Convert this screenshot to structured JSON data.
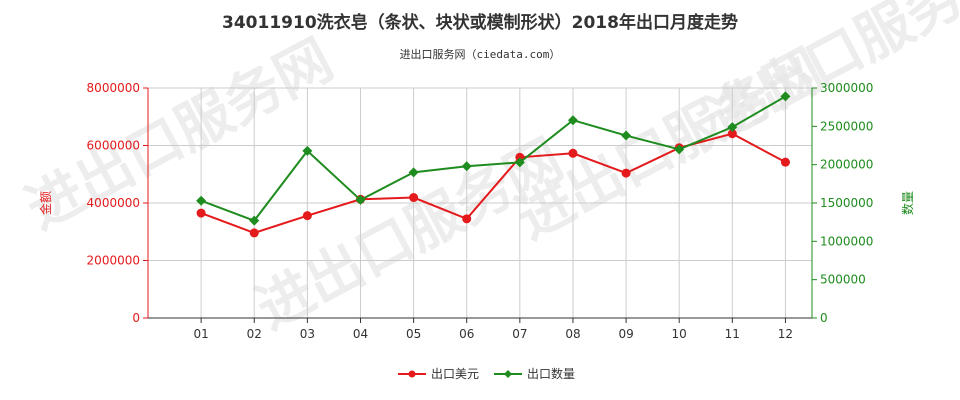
{
  "title": "34011910洗衣皂（条状、块状或模制形状）2018年出口月度走势",
  "subtitle": "进出口服务网（ciedata.com）",
  "watermark": "进出口服务网",
  "colors": {
    "value": "#e41a1c",
    "quantity": "#1e8c1e",
    "grid": "#cccccc",
    "axis": "#333333"
  },
  "chart_data": {
    "type": "line",
    "categories": [
      "01",
      "02",
      "03",
      "04",
      "05",
      "06",
      "07",
      "08",
      "09",
      "10",
      "11",
      "12"
    ],
    "y_left": {
      "label": "金额",
      "ylim": [
        0,
        8000000
      ],
      "ticks": [
        "0",
        "2000000",
        "4000000",
        "6000000",
        "8000000"
      ]
    },
    "y_right": {
      "label": "数量",
      "ylim": [
        0,
        3000000
      ],
      "ticks": [
        "0",
        "500000",
        "1000000",
        "1500000",
        "2000000",
        "2500000",
        "3000000"
      ]
    },
    "series": [
      {
        "name": "出口美元",
        "axis": "left",
        "color": "#e41a1c",
        "marker": "circle",
        "values": [
          3650000,
          2960000,
          3560000,
          4130000,
          4190000,
          3450000,
          5590000,
          5730000,
          5040000,
          5920000,
          6410000,
          5420000
        ]
      },
      {
        "name": "出口数量",
        "axis": "right",
        "color": "#1e8c1e",
        "marker": "diamond",
        "values": [
          1530000,
          1270000,
          2180000,
          1540000,
          1900000,
          1980000,
          2030000,
          2580000,
          2380000,
          2200000,
          2490000,
          2890000
        ]
      }
    ],
    "grid": true,
    "legend": "bottom-center"
  }
}
